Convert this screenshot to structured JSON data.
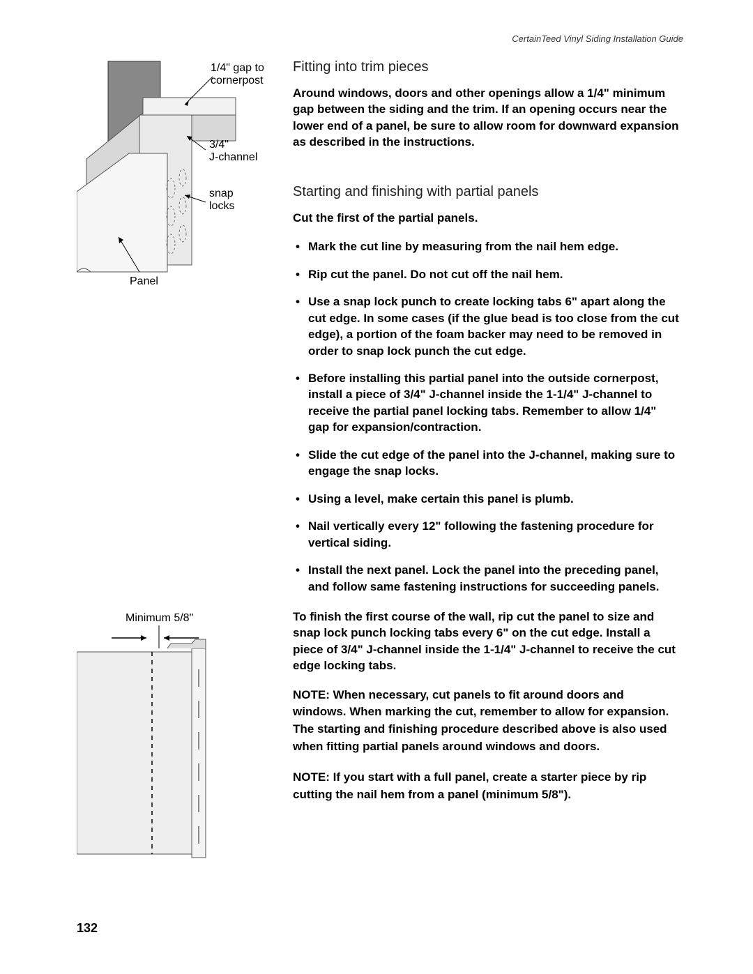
{
  "header": "CertainTeed Vinyl Siding Installation Guide",
  "pageNumber": "132",
  "diagram1": {
    "label_gap": "1/4\" gap to cornerpost",
    "label_jchannel": "3/4\" J-channel",
    "label_snap": "snap locks",
    "label_panel": "Panel"
  },
  "diagram2": {
    "label_min": "Minimum 5/8\""
  },
  "section1": {
    "title": "Fitting into trim pieces",
    "body": "Around windows, doors and other openings allow a 1/4\" minimum gap between the siding and the trim. If an opening occurs near the lower end of a panel, be sure to allow room for downward expansion as described in the instructions."
  },
  "section2": {
    "title": "Starting and finishing with partial panels",
    "intro": "Cut the first of the partial panels.",
    "items": [
      "Mark the cut line by measuring from the nail hem edge.",
      "Rip cut the panel. Do not cut off the nail hem.",
      "Use a snap lock punch to create locking tabs 6\" apart along the cut edge. In some cases (if the glue bead is too close from the cut edge), a portion of the foam backer may need to be removed in order to snap lock punch the cut edge.",
      "Before installing this partial panel into the outside cornerpost, install a piece of 3/4\" J-channel inside the 1-1/4\" J-channel to receive the partial panel locking tabs. Remember to allow 1/4\" gap for expansion/contraction.",
      "Slide the cut edge of the panel into the J-channel, making sure to engage the snap locks.",
      "Using a level, make certain this panel is plumb.",
      "Nail vertically every 12\" following the fastening procedure for vertical siding.",
      "Install the next panel. Lock the panel into the preceding panel, and follow same fastening instructions for succeeding panels."
    ],
    "finish": "To finish the first course of the wall, rip cut the panel to size and snap lock punch locking tabs every 6\" on the cut edge. Install a piece of 3/4\" J-channel inside the 1-1/4\" J-channel to receive the cut edge locking tabs.",
    "note1_label": "NOTE: ",
    "note1": "When necessary, cut panels to fit around doors and windows. When marking the cut, remember to allow for expansion. The starting and finishing procedure described above is also used when fitting partial panels around windows and doors.",
    "note2_label": "NOTE: ",
    "note2": "If you start with a full panel, create a starter piece by rip cutting the nail hem from a panel (minimum 5/8\")."
  }
}
